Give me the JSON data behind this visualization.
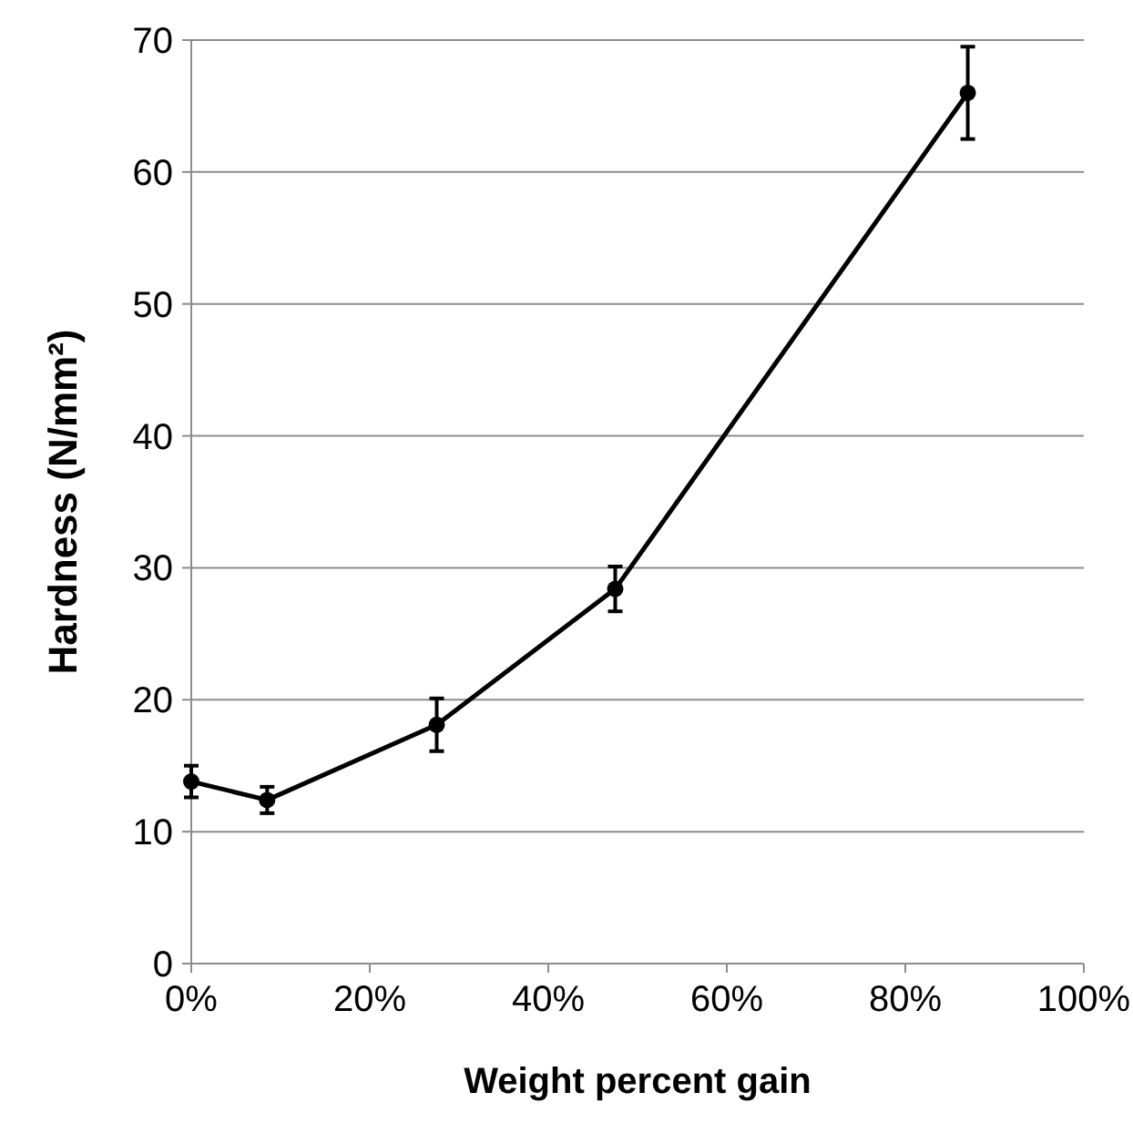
{
  "chart_data": {
    "type": "line",
    "xlabel": "Weight percent gain",
    "ylabel": "Hardness (N/mm²)",
    "x": [
      0,
      8.5,
      27.5,
      47.5,
      87
    ],
    "series": [
      {
        "color": "#000000",
        "values": [
          13.8,
          12.4,
          18.1,
          28.4,
          66
        ],
        "errors": [
          1.2,
          1,
          2,
          1.7,
          3.5
        ]
      }
    ],
    "xlim": [
      0,
      100
    ],
    "xticks": [
      {
        "value": 0,
        "label": "0%"
      },
      {
        "value": 20,
        "label": "20%"
      },
      {
        "value": 40,
        "label": "40%"
      },
      {
        "value": 60,
        "label": "60%"
      },
      {
        "value": 80,
        "label": "80%"
      },
      {
        "value": 100,
        "label": "100%"
      }
    ],
    "ylim": [
      0,
      70
    ],
    "yticks": [
      0,
      10,
      20,
      30,
      40,
      50,
      60,
      70
    ],
    "grid": "y",
    "marker": "circle",
    "line_style": "solid"
  }
}
